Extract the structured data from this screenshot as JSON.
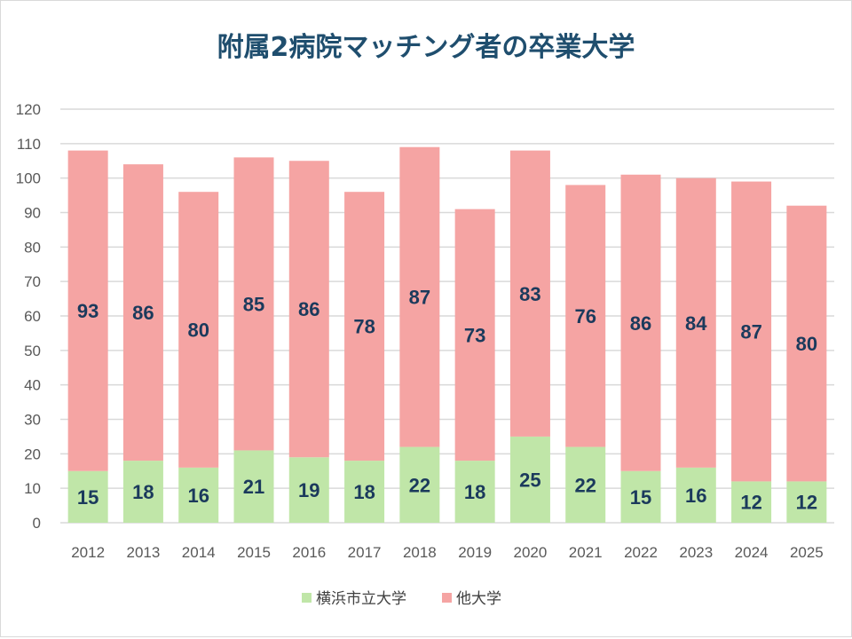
{
  "chart_data": {
    "type": "bar",
    "stacked": true,
    "title": "附属2病院マッチング者の卒業大学",
    "categories": [
      "2012",
      "2013",
      "2014",
      "2015",
      "2016",
      "2017",
      "2018",
      "2019",
      "2020",
      "2021",
      "2022",
      "2023",
      "2024",
      "2025"
    ],
    "series": [
      {
        "name": "横浜市立大学",
        "color": "#c0e6a8",
        "values": [
          15,
          18,
          16,
          21,
          19,
          18,
          22,
          18,
          25,
          22,
          15,
          16,
          12,
          12
        ]
      },
      {
        "name": "他大学",
        "color": "#f5a4a3",
        "values": [
          93,
          86,
          80,
          85,
          86,
          78,
          87,
          73,
          83,
          76,
          86,
          84,
          87,
          80
        ]
      }
    ],
    "ylim": [
      0,
      120
    ],
    "yticks": [
      0,
      10,
      20,
      30,
      40,
      50,
      60,
      70,
      80,
      90,
      100,
      110,
      120
    ],
    "grid": true,
    "legend": "bottom",
    "data_label_color": "#1b3a5c"
  }
}
